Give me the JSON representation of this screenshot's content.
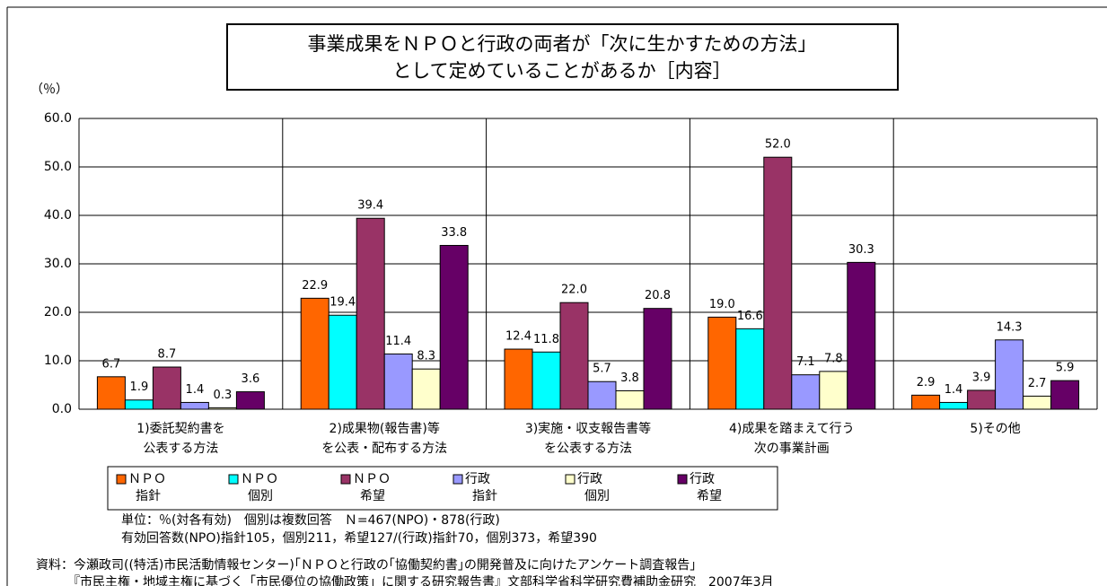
{
  "chart_data": {
    "type": "bar",
    "title": [
      "事業成果をＮＰＯと行政の両者が「次に生かすための方法」",
      "として定めていることがあるか［内容］"
    ],
    "y_label": "（％）",
    "categories": [
      [
        "1)委託契約書を",
        "公表する方法"
      ],
      [
        "2)成果物(報告書)等",
        "を公表・配布する方法"
      ],
      [
        "3)実施・収支報告書等",
        "を公表する方法"
      ],
      [
        "4)成果を踏まえて行う",
        "次の事業計画"
      ],
      [
        "5)その他"
      ]
    ],
    "series": [
      {
        "name": [
          "ＮＰＯ",
          "指針"
        ],
        "color": "#ff6600",
        "values": [
          6.7,
          22.9,
          12.4,
          19.0,
          2.9
        ],
        "value_labels": [
          "6.7",
          "22.9",
          "12.4",
          "19.0",
          "2.9"
        ]
      },
      {
        "name": [
          "ＮＰＯ",
          "個別"
        ],
        "color": "#00ffff",
        "values": [
          1.9,
          19.4,
          11.8,
          16.6,
          1.4
        ],
        "value_labels": [
          "1.9",
          "19.4",
          "11.8",
          "16.6",
          "1.4"
        ]
      },
      {
        "name": [
          "ＮＰＯ",
          "希望"
        ],
        "color": "#993366",
        "values": [
          8.7,
          39.4,
          22.0,
          52.0,
          3.9
        ],
        "value_labels": [
          "8.7",
          "39.4",
          "22.0",
          "52.0",
          "3.9"
        ]
      },
      {
        "name": [
          "行政",
          "指針"
        ],
        "color": "#9999ff",
        "values": [
          1.4,
          11.4,
          5.7,
          7.1,
          14.3
        ],
        "value_labels": [
          "1.4",
          "11.4",
          "5.7",
          "7.1",
          "14.3"
        ]
      },
      {
        "name": [
          "行政",
          "個別"
        ],
        "color": "#ffffcc",
        "values": [
          0.3,
          8.3,
          3.8,
          7.8,
          2.7
        ],
        "value_labels": [
          "0.3",
          "8.3",
          "3.8",
          "7.8",
          "2.7"
        ]
      },
      {
        "name": [
          "行政",
          "希望"
        ],
        "color": "#660066",
        "values": [
          3.6,
          33.8,
          20.8,
          30.3,
          5.9
        ],
        "value_labels": [
          "3.6",
          "33.8",
          "20.8",
          "30.3",
          "5.9"
        ]
      }
    ],
    "ylim": [
      0,
      60
    ],
    "yticks": [
      {
        "value": 0,
        "label": "0.0"
      },
      {
        "value": 10,
        "label": "10.0"
      },
      {
        "value": 20,
        "label": "20.0"
      },
      {
        "value": 30,
        "label": "30.0"
      },
      {
        "value": 40,
        "label": "40.0"
      },
      {
        "value": 50,
        "label": "50.0"
      },
      {
        "value": 60,
        "label": "60.0"
      }
    ],
    "grid": true,
    "notes": [
      "単位：％(対各有効)　個別は複数回答　Ｎ=467(NPO)・878(行政)",
      "有効回答数(NPO)指針105，個別211，希望127/(行政)指針70，個別373，希望390"
    ],
    "source": [
      "資料：今瀬政司((特活)市民活動情報センター)｢ＮＰＯと行政の｢協働契約書｣の開発普及に向けたアンケート調査報告｣",
      "『市民主権・地域主権に基づく「市民優位の協働政策」に関する研究報告書』文部科学省科学研究費補助金研究　2007年3月"
    ]
  }
}
